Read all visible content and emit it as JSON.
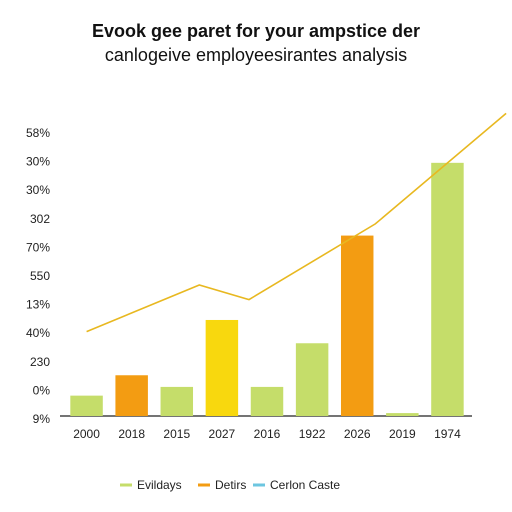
{
  "chart_data": {
    "type": "bar",
    "title_line1": "Evook gee paret for your ampstice der",
    "title_line2": "canlogeive employeesir­antes analysis",
    "categories": [
      "2000",
      "2018",
      "2015",
      "2027",
      "2016",
      "1922",
      "2026",
      "2019",
      "1974"
    ],
    "y_tick_labels": [
      "58%",
      "30%",
      "30%",
      "302",
      "70%",
      "550",
      "13%",
      "40%",
      "230",
      "0%",
      "9%"
    ],
    "ylim": [
      0,
      100
    ],
    "bars": [
      {
        "value": 7,
        "color": "#c5dd6a"
      },
      {
        "value": 14,
        "color": "#f39c12"
      },
      {
        "value": 10,
        "color": "#c5dd6a"
      },
      {
        "value": 33,
        "color": "#f8d80e"
      },
      {
        "value": 10,
        "color": "#c5dd6a"
      },
      {
        "value": 25,
        "color": "#c5dd6a"
      },
      {
        "value": 62,
        "color": "#f39c12"
      },
      {
        "value": 1,
        "color": "#c5dd6a"
      },
      {
        "value": 87,
        "color": "#c5dd6a"
      }
    ],
    "line": {
      "color": "#e8b820",
      "values": [
        29,
        0,
        45,
        40,
        0,
        0,
        66,
        0,
        104
      ],
      "points": [
        [
          0,
          29
        ],
        [
          2.5,
          45
        ],
        [
          3.6,
          40
        ],
        [
          6.4,
          66
        ],
        [
          9.3,
          104
        ]
      ]
    },
    "legend": [
      {
        "label": "Evildays",
        "color": "#c5dd6a"
      },
      {
        "label": "Detirs",
        "color": "#f39c12"
      },
      {
        "label": "Cerlon Caste",
        "color": "#6cc6e0"
      }
    ]
  }
}
